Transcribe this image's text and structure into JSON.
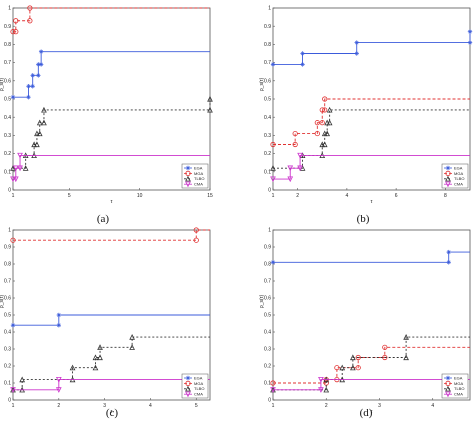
{
  "chart_data": [
    {
      "type": "line",
      "caption": "(a)",
      "xlabel": "τ",
      "ylabel": "ρ_s(τ)",
      "xlim": [
        1,
        15
      ],
      "ylim": [
        0,
        1
      ],
      "xticks": [
        "1",
        "5",
        "10",
        "15"
      ],
      "xtick_values": [
        1,
        5,
        10,
        15
      ],
      "yticks": [
        "0",
        "0.1",
        "0.2",
        "0.3",
        "0.4",
        "0.5",
        "0.6",
        "0.7",
        "0.8",
        "0.9",
        "1"
      ],
      "grid": false,
      "legend_position": "lower-right",
      "series": [
        {
          "name": "EGA",
          "color": "#3b5bdb",
          "dash": "",
          "marker": "star",
          "x": [
            1,
            2.1,
            2.4,
            2.8,
            3,
            15
          ],
          "y": [
            0.51,
            0.57,
            0.63,
            0.69,
            0.76,
            0.76
          ]
        },
        {
          "name": "MGA",
          "color": "#e03131",
          "dash": "3,2",
          "marker": "circle",
          "x": [
            1,
            1.2,
            2.2,
            15
          ],
          "y": [
            0.87,
            0.93,
            1.0,
            1.0
          ]
        },
        {
          "name": "TLBO",
          "color": "#333333",
          "dash": "2,2",
          "marker": "triangle",
          "x": [
            1,
            1.9,
            2.5,
            2.7,
            2.9,
            3.2,
            15
          ],
          "y": [
            0.12,
            0.19,
            0.25,
            0.31,
            0.37,
            0.44,
            0.5
          ]
        },
        {
          "name": "CMA",
          "color": "#cc33cc",
          "dash": "",
          "marker": "triangle-down",
          "x": [
            1,
            1.2,
            1.5,
            15
          ],
          "y": [
            0.06,
            0.12,
            0.19,
            0.19
          ]
        }
      ]
    },
    {
      "type": "line",
      "caption": "(b)",
      "xlabel": "τ",
      "ylabel": "ρ_s(τ)",
      "xlim": [
        1,
        9
      ],
      "ylim": [
        0,
        1
      ],
      "xticks": [
        "1",
        "2",
        "4",
        "6",
        "8"
      ],
      "xtick_values": [
        1,
        2,
        4,
        6,
        8
      ],
      "yticks": [
        "0",
        "0.1",
        "0.2",
        "0.3",
        "0.4",
        "0.5",
        "0.6",
        "0.7",
        "0.8",
        "0.9",
        "1"
      ],
      "grid": false,
      "legend_position": "lower-right",
      "series": [
        {
          "name": "EGA",
          "color": "#3b5bdb",
          "dash": "",
          "marker": "star",
          "x": [
            1,
            2.2,
            4.4,
            9
          ],
          "y": [
            0.69,
            0.75,
            0.81,
            0.87
          ]
        },
        {
          "name": "MGA",
          "color": "#e03131",
          "dash": "3,2",
          "marker": "circle",
          "x": [
            1,
            1.9,
            2.8,
            3.0,
            3.1,
            9
          ],
          "y": [
            0.25,
            0.31,
            0.37,
            0.44,
            0.5,
            0.5
          ]
        },
        {
          "name": "TLBO",
          "color": "#333333",
          "dash": "2,2",
          "marker": "triangle",
          "x": [
            1,
            2.2,
            3.0,
            3.1,
            3.2,
            3.3,
            9
          ],
          "y": [
            0.12,
            0.19,
            0.25,
            0.31,
            0.37,
            0.44,
            0.44
          ]
        },
        {
          "name": "CMA",
          "color": "#cc33cc",
          "dash": "",
          "marker": "triangle-down",
          "x": [
            1,
            1.7,
            2.1,
            9
          ],
          "y": [
            0.06,
            0.12,
            0.19,
            0.19
          ]
        }
      ]
    },
    {
      "type": "line",
      "caption": "(c)",
      "xlabel": "τ",
      "ylabel": "ρ_s(τ)",
      "xlim": [
        1,
        5.3
      ],
      "ylim": [
        0,
        1
      ],
      "xticks": [
        "1",
        "2",
        "3",
        "4",
        "5"
      ],
      "xtick_values": [
        1,
        2,
        3,
        4,
        5
      ],
      "yticks": [
        "0",
        "0.1",
        "0.2",
        "0.3",
        "0.4",
        "0.5",
        "0.6",
        "0.7",
        "0.8",
        "0.9",
        "1"
      ],
      "grid": false,
      "legend_position": "lower-right",
      "series": [
        {
          "name": "EGA",
          "color": "#3b5bdb",
          "dash": "",
          "marker": "star",
          "x": [
            1,
            2.0,
            5.3
          ],
          "y": [
            0.44,
            0.5,
            0.5
          ]
        },
        {
          "name": "MGA",
          "color": "#e03131",
          "dash": "3,2",
          "marker": "circle",
          "x": [
            1,
            5.0,
            5.3
          ],
          "y": [
            0.94,
            1.0,
            1.0
          ]
        },
        {
          "name": "TLBO",
          "color": "#333333",
          "dash": "2,2",
          "marker": "triangle",
          "x": [
            1,
            1.2,
            2.3,
            2.8,
            2.9,
            3.6,
            5.3
          ],
          "y": [
            0.06,
            0.12,
            0.19,
            0.25,
            0.31,
            0.37,
            0.37
          ]
        },
        {
          "name": "CMA",
          "color": "#cc33cc",
          "dash": "",
          "marker": "triangle-down",
          "x": [
            1,
            2.0,
            5.3
          ],
          "y": [
            0.06,
            0.12,
            0.12
          ]
        }
      ]
    },
    {
      "type": "line",
      "caption": "(d)",
      "xlabel": "τ",
      "ylabel": "ρ_s(τ)",
      "xlim": [
        1,
        4.7
      ],
      "ylim": [
        0,
        1
      ],
      "xticks": [
        "1",
        "2",
        "3",
        "4"
      ],
      "xtick_values": [
        1,
        2,
        3,
        4
      ],
      "yticks": [
        "0",
        "0.1",
        "0.2",
        "0.3",
        "0.4",
        "0.5",
        "0.6",
        "0.7",
        "0.8",
        "0.9",
        "1"
      ],
      "grid": false,
      "legend_position": "lower-right",
      "series": [
        {
          "name": "EGA",
          "color": "#3b5bdb",
          "dash": "",
          "marker": "star",
          "x": [
            1,
            4.3,
            4.7
          ],
          "y": [
            0.81,
            0.87,
            0.87
          ]
        },
        {
          "name": "MGA",
          "color": "#e03131",
          "dash": "3,2",
          "marker": "circle",
          "x": [
            1,
            2.0,
            2.2,
            2.6,
            3.1,
            4.7
          ],
          "y": [
            0.1,
            0.12,
            0.19,
            0.25,
            0.31,
            0.31
          ]
        },
        {
          "name": "TLBO",
          "color": "#333333",
          "dash": "2,2",
          "marker": "triangle",
          "x": [
            1,
            2.0,
            2.3,
            2.5,
            3.5,
            4.7
          ],
          "y": [
            0.06,
            0.12,
            0.19,
            0.25,
            0.37,
            0.37
          ]
        },
        {
          "name": "CMA",
          "color": "#cc33cc",
          "dash": "",
          "marker": "triangle-down",
          "x": [
            1,
            1.9,
            4.7
          ],
          "y": [
            0.06,
            0.12,
            0.12
          ]
        }
      ]
    }
  ]
}
